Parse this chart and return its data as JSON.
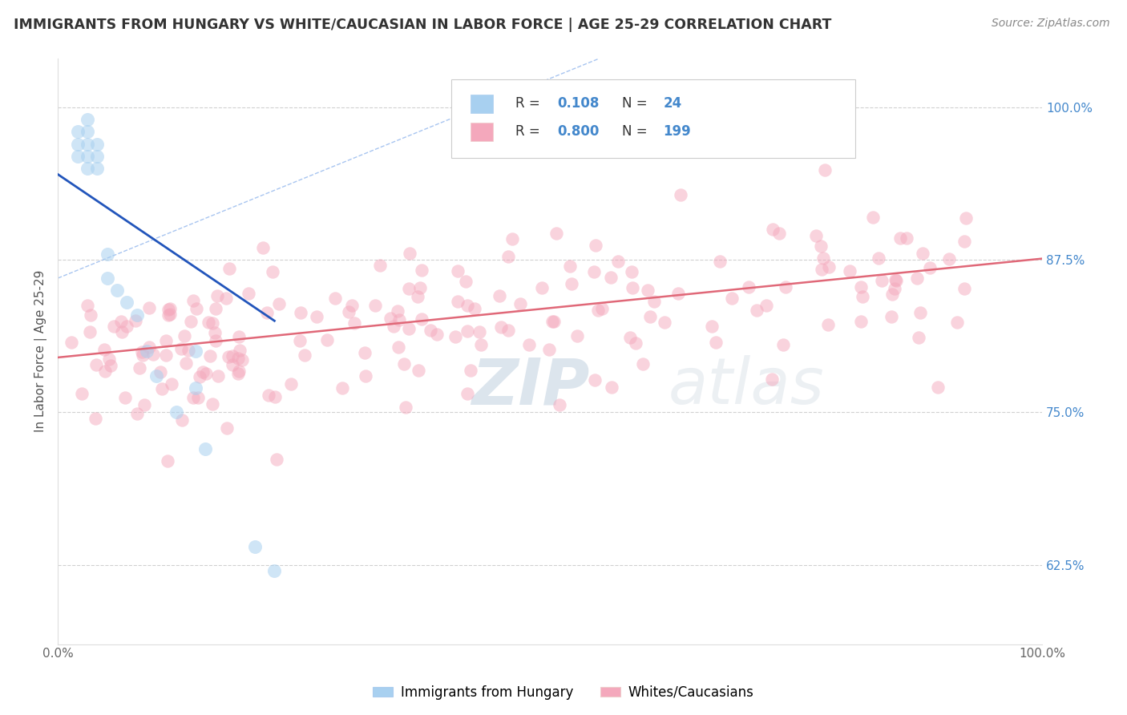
{
  "title": "IMMIGRANTS FROM HUNGARY VS WHITE/CAUCASIAN IN LABOR FORCE | AGE 25-29 CORRELATION CHART",
  "source_text": "Source: ZipAtlas.com",
  "ylabel": "In Labor Force | Age 25-29",
  "xlim": [
    0.0,
    1.0
  ],
  "ylim": [
    0.56,
    1.04
  ],
  "yticks": [
    0.625,
    0.75,
    0.875,
    1.0
  ],
  "ytick_labels": [
    "62.5%",
    "75.0%",
    "87.5%",
    "100.0%"
  ],
  "xticks": [
    0.0,
    0.1,
    0.2,
    0.3,
    0.4,
    0.5,
    0.6,
    0.7,
    0.8,
    0.9,
    1.0
  ],
  "xtick_labels": [
    "0.0%",
    "",
    "",
    "",
    "",
    "",
    "",
    "",
    "",
    "",
    "100.0%"
  ],
  "blue_R": 0.108,
  "blue_N": 24,
  "pink_R": 0.8,
  "pink_N": 199,
  "blue_color": "#A8D0F0",
  "pink_color": "#F4A8BC",
  "blue_line_color": "#2255BB",
  "pink_line_color": "#E06878",
  "diag_line_color": "#99BBEE",
  "grid_color": "#CCCCCC",
  "background_color": "#FFFFFF",
  "watermark_text": "ZIPatlas",
  "watermark_color": "#C8D8E8",
  "title_color": "#333333",
  "label_color": "#4488CC",
  "legend_blue_label": "Immigrants from Hungary",
  "legend_pink_label": "Whites/Caucasians",
  "blue_scatter_x": [
    0.02,
    0.02,
    0.02,
    0.03,
    0.03,
    0.03,
    0.03,
    0.03,
    0.04,
    0.04,
    0.04,
    0.05,
    0.05,
    0.06,
    0.07,
    0.08,
    0.09,
    0.1,
    0.12,
    0.14,
    0.14,
    0.15,
    0.2,
    0.22
  ],
  "blue_scatter_y": [
    0.98,
    0.97,
    0.96,
    0.99,
    0.98,
    0.97,
    0.96,
    0.95,
    0.97,
    0.96,
    0.95,
    0.88,
    0.86,
    0.85,
    0.84,
    0.83,
    0.8,
    0.78,
    0.75,
    0.8,
    0.77,
    0.72,
    0.64,
    0.62
  ],
  "pink_trendline_x": [
    0.0,
    1.0
  ],
  "pink_trendline_y": [
    0.795,
    0.876
  ],
  "blue_trendline_x": [
    0.0,
    0.22
  ],
  "blue_trendline_y": [
    0.945,
    0.825
  ],
  "diag_line_x": [
    0.0,
    0.55
  ],
  "diag_line_y": [
    0.86,
    1.04
  ]
}
